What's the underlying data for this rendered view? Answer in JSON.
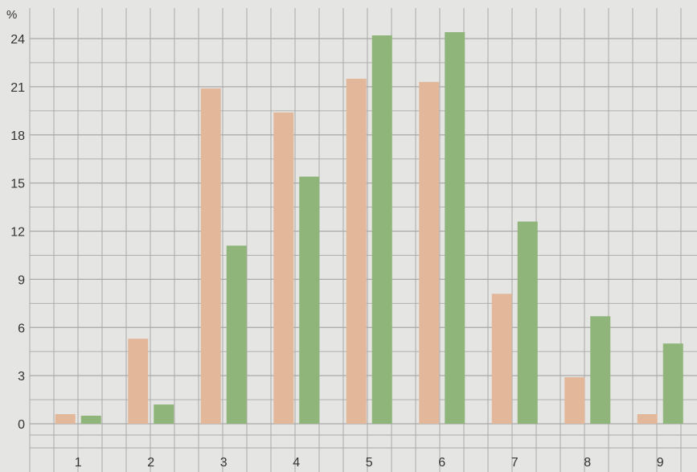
{
  "chart_data": {
    "type": "bar",
    "title": "",
    "xlabel": "",
    "ylabel": "%",
    "categories": [
      "1",
      "2",
      "3",
      "4",
      "5",
      "6",
      "7",
      "8",
      "9"
    ],
    "series": [
      {
        "values": [
          0.6,
          5.3,
          20.9,
          19.4,
          21.5,
          21.3,
          8.1,
          2.9,
          0.6
        ]
      },
      {
        "values": [
          0.5,
          1.2,
          11.1,
          15.4,
          24.2,
          24.4,
          12.6,
          6.7,
          5.0
        ]
      }
    ],
    "ylim": [
      0,
      24
    ],
    "yticks": [
      0,
      3,
      6,
      9,
      12,
      15,
      18,
      21,
      24
    ],
    "grid": true,
    "legend": "none",
    "colors": {
      "series_1": "#e3b89a",
      "series_2": "#8fb57a",
      "background": "#e5e5e3",
      "grid": "#a9a9a9"
    }
  }
}
